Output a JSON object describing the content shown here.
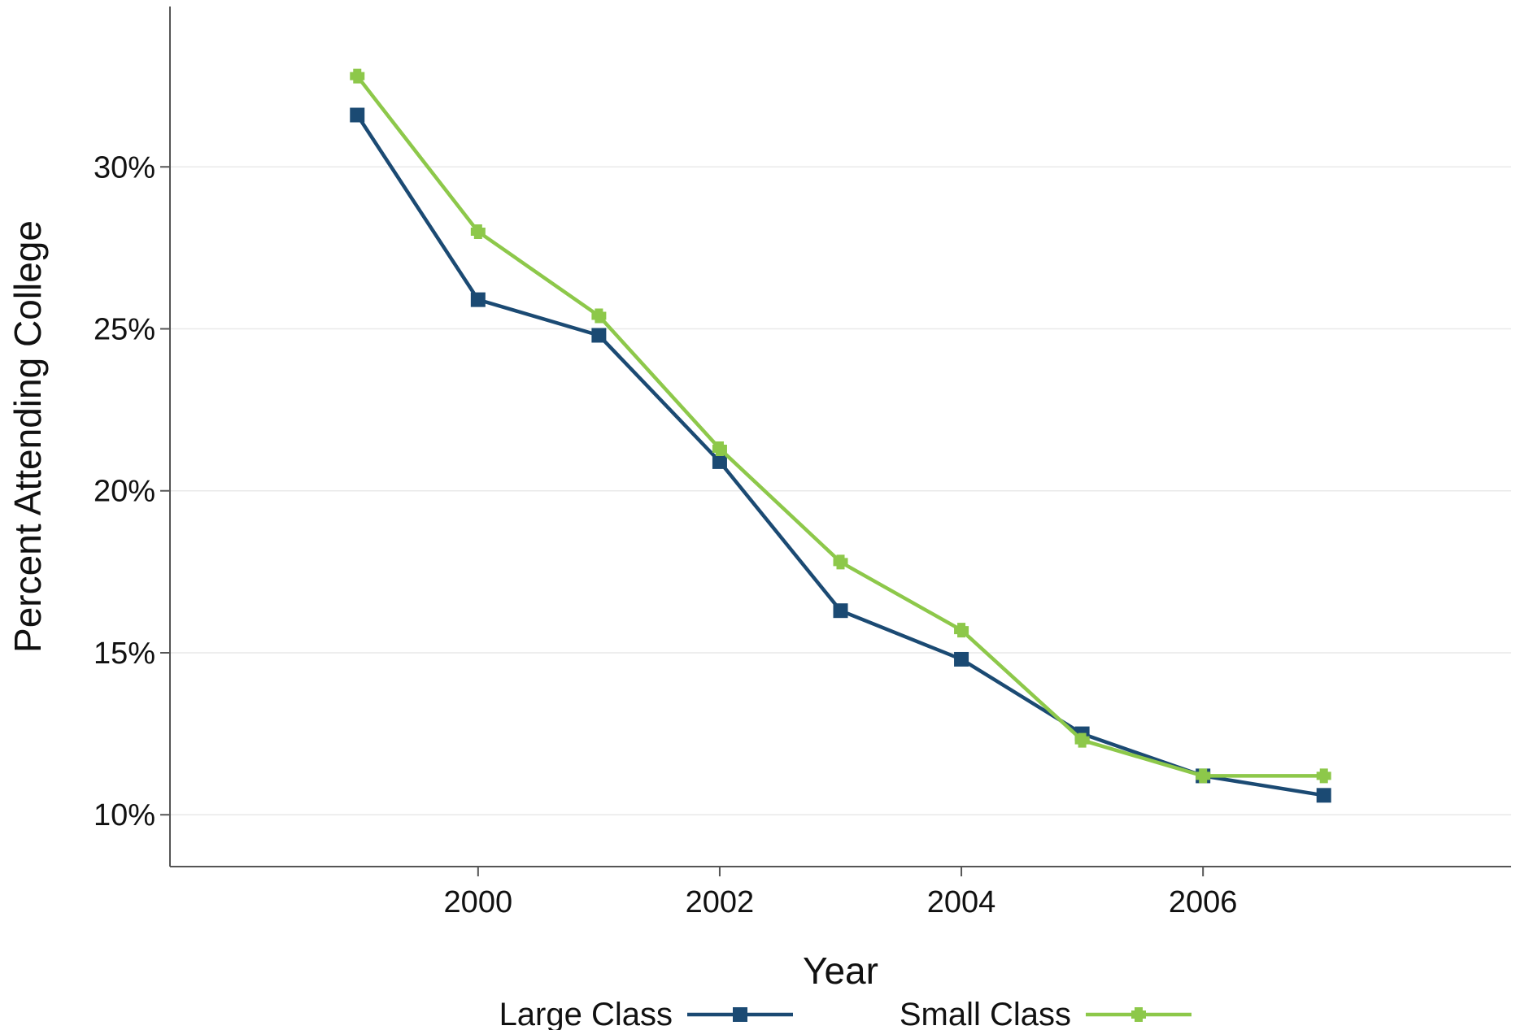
{
  "chart_data": {
    "type": "line",
    "title": "",
    "xlabel": "Year",
    "ylabel": "Percent Attending College",
    "x": [
      1999,
      2000,
      2001,
      2002,
      2003,
      2004,
      2005,
      2006,
      2007
    ],
    "xlim": [
      1997.45,
      2008.55
    ],
    "ylim": [
      8.4,
      34.95
    ],
    "x_ticks": [
      2000,
      2002,
      2004,
      2006
    ],
    "x_tick_labels": [
      "2000",
      "2002",
      "2004",
      "2006"
    ],
    "y_ticks": [
      10,
      15,
      20,
      25,
      30
    ],
    "y_tick_labels": [
      "10%",
      "15%",
      "20%",
      "25%",
      "30%"
    ],
    "grid": "horizontal",
    "legend_position": "bottom",
    "series": [
      {
        "name": "Large Class",
        "color": "#1b4a73",
        "marker": "square",
        "values": [
          31.6,
          25.9,
          24.8,
          20.9,
          16.3,
          14.8,
          12.5,
          11.2,
          10.6
        ]
      },
      {
        "name": "Small Class",
        "color": "#8dc84a",
        "marker": "plus",
        "values": [
          32.8,
          28.0,
          25.4,
          21.3,
          17.8,
          15.7,
          12.3,
          11.2,
          11.2
        ]
      }
    ]
  }
}
